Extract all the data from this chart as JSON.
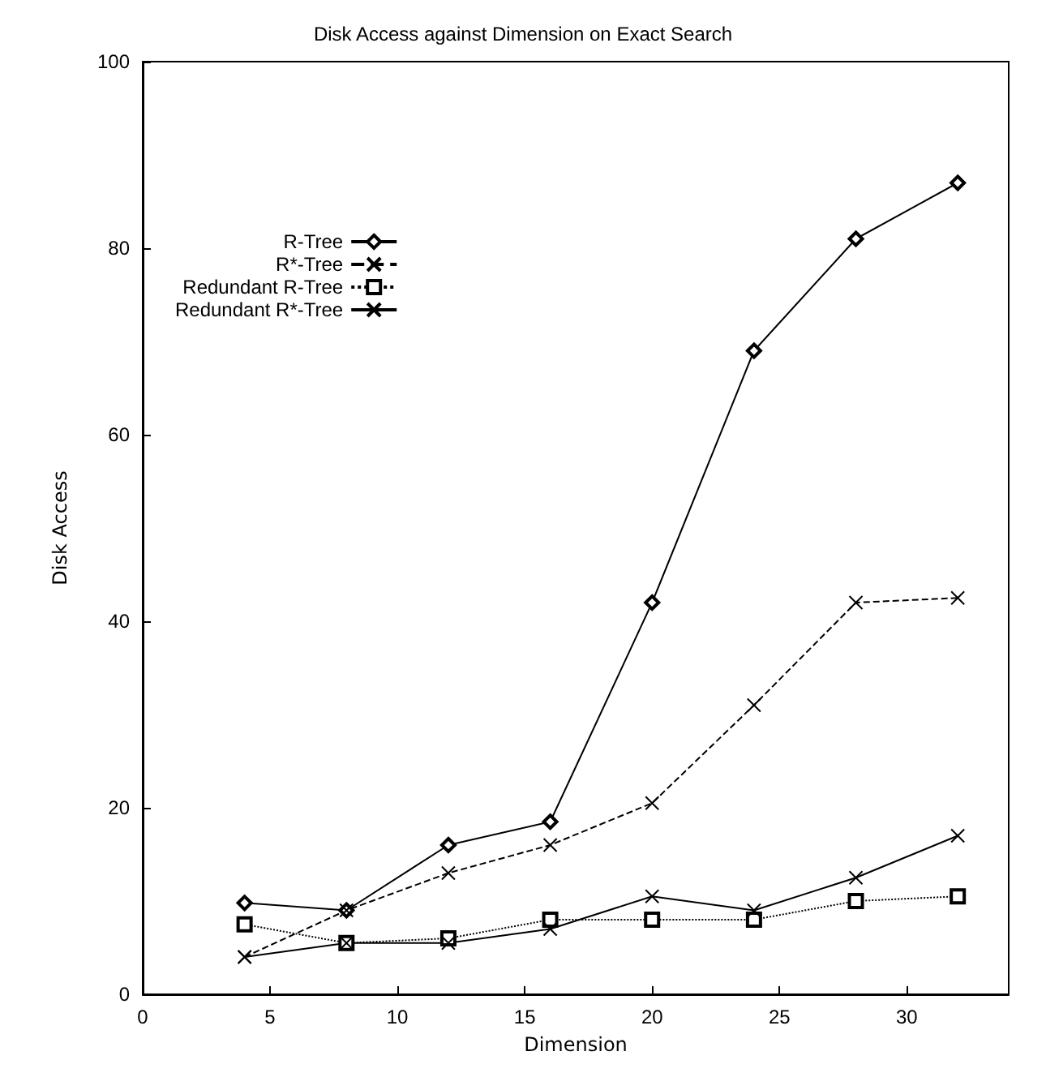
{
  "chart_data": {
    "type": "line",
    "title": "Disk Access against Dimension on Exact Search",
    "xlabel": "Dimension",
    "ylabel": "Disk Access",
    "x": [
      4,
      8,
      12,
      16,
      20,
      24,
      28,
      32
    ],
    "xlim": [
      0,
      34
    ],
    "xticks": [
      0,
      5,
      10,
      15,
      20,
      25,
      30
    ],
    "ylim": [
      0,
      100
    ],
    "yticks": [
      0,
      20,
      40,
      60,
      80,
      100
    ],
    "grid": false,
    "legend": "top left",
    "series": [
      {
        "name": "R-Tree",
        "color": "#000000",
        "marker": "diamond",
        "line_style": "solid",
        "values": [
          9.8,
          9,
          16,
          18.5,
          42,
          69,
          81,
          87
        ]
      },
      {
        "name": "R*-Tree",
        "color": "#000000",
        "marker": "cross",
        "line_style": "dashed",
        "values": [
          4,
          9,
          13,
          16,
          20.5,
          31,
          42,
          42.5
        ]
      },
      {
        "name": "Redundant R-Tree",
        "color": "#000000",
        "marker": "square",
        "line_style": "dotted",
        "values": [
          7.5,
          5.5,
          6,
          8,
          8,
          8,
          10,
          10.5
        ]
      },
      {
        "name": "Redundant R*-Tree",
        "color": "#000000",
        "marker": "cross",
        "line_style": "solid",
        "values": [
          4,
          5.5,
          5.5,
          7,
          10.5,
          9,
          12.5,
          17
        ]
      }
    ]
  }
}
